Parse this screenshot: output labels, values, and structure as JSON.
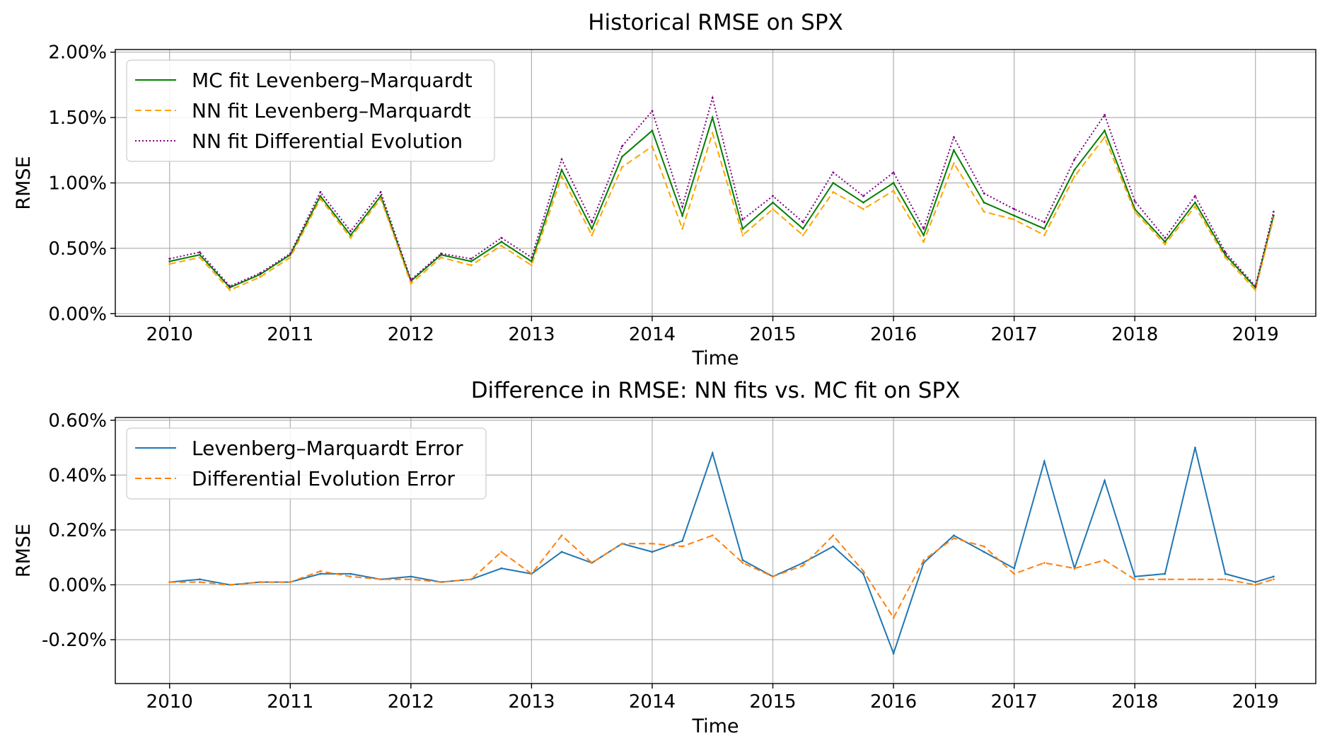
{
  "chart_data": [
    {
      "type": "line",
      "title": "Historical RMSE on SPX",
      "xlabel": "Time",
      "ylabel": "RMSE",
      "xlim": [
        2009.55,
        2019.5
      ],
      "ylim": [
        -0.0002,
        0.0202
      ],
      "x_ticks": [
        2010,
        2011,
        2012,
        2013,
        2014,
        2015,
        2016,
        2017,
        2018,
        2019
      ],
      "x_tick_labels": [
        "2010",
        "2011",
        "2012",
        "2013",
        "2014",
        "2015",
        "2016",
        "2017",
        "2018",
        "2019"
      ],
      "y_ticks": [
        0.0,
        0.005,
        0.01,
        0.015,
        0.02
      ],
      "y_tick_labels": [
        "0.00%",
        "0.50%",
        "1.00%",
        "1.50%",
        "2.00%"
      ],
      "grid": true,
      "legend_position": "top-left",
      "x": [
        2010.0,
        2010.25,
        2010.5,
        2010.75,
        2011.0,
        2011.25,
        2011.5,
        2011.75,
        2012.0,
        2012.25,
        2012.5,
        2012.75,
        2013.0,
        2013.25,
        2013.5,
        2013.75,
        2014.0,
        2014.25,
        2014.5,
        2014.75,
        2015.0,
        2015.25,
        2015.5,
        2015.75,
        2016.0,
        2016.25,
        2016.5,
        2016.75,
        2017.0,
        2017.25,
        2017.5,
        2017.75,
        2018.0,
        2018.25,
        2018.5,
        2018.75,
        2019.0,
        2019.15
      ],
      "series": [
        {
          "name": "MC fit Levenberg–Marquardt",
          "color": "#008000",
          "style": "solid",
          "values": [
            0.004,
            0.0045,
            0.002,
            0.003,
            0.0045,
            0.009,
            0.006,
            0.009,
            0.0025,
            0.0045,
            0.004,
            0.0055,
            0.004,
            0.011,
            0.0065,
            0.012,
            0.014,
            0.0075,
            0.015,
            0.0065,
            0.0085,
            0.0065,
            0.01,
            0.0085,
            0.01,
            0.006,
            0.0125,
            0.0085,
            0.0075,
            0.0065,
            0.011,
            0.014,
            0.008,
            0.0055,
            0.0085,
            0.0045,
            0.002,
            0.0075
          ]
        },
        {
          "name": "NN fit Levenberg–Marquardt",
          "color": "#FFA500",
          "style": "dashed",
          "values": [
            0.0038,
            0.0043,
            0.0018,
            0.0028,
            0.0043,
            0.0088,
            0.0058,
            0.0088,
            0.0023,
            0.0043,
            0.0037,
            0.0052,
            0.0037,
            0.0105,
            0.006,
            0.0112,
            0.0128,
            0.0065,
            0.0138,
            0.006,
            0.008,
            0.006,
            0.0093,
            0.008,
            0.0094,
            0.0055,
            0.0115,
            0.0078,
            0.0072,
            0.006,
            0.0105,
            0.0135,
            0.0078,
            0.0053,
            0.0082,
            0.0043,
            0.0018,
            0.0073
          ]
        },
        {
          "name": "NN fit Differential Evolution",
          "color": "#800080",
          "style": "dotted",
          "values": [
            0.0042,
            0.0047,
            0.0021,
            0.0031,
            0.0046,
            0.0093,
            0.0063,
            0.0093,
            0.0026,
            0.0046,
            0.0042,
            0.0058,
            0.0043,
            0.0118,
            0.007,
            0.0128,
            0.0155,
            0.0082,
            0.0165,
            0.0072,
            0.009,
            0.007,
            0.0108,
            0.009,
            0.0108,
            0.0065,
            0.0135,
            0.0092,
            0.008,
            0.007,
            0.0118,
            0.0152,
            0.0086,
            0.0058,
            0.009,
            0.0047,
            0.0021,
            0.0078
          ]
        }
      ]
    },
    {
      "type": "line",
      "title": "Difference in RMSE:  NN fits vs. MC fit on SPX",
      "xlabel": "Time",
      "ylabel": "RMSE",
      "xlim": [
        2009.55,
        2019.5
      ],
      "ylim": [
        -0.0036,
        0.0061
      ],
      "x_ticks": [
        2010,
        2011,
        2012,
        2013,
        2014,
        2015,
        2016,
        2017,
        2018,
        2019
      ],
      "x_tick_labels": [
        "2010",
        "2011",
        "2012",
        "2013",
        "2014",
        "2015",
        "2016",
        "2017",
        "2018",
        "2019"
      ],
      "y_ticks": [
        -0.002,
        0.0,
        0.002,
        0.004,
        0.006
      ],
      "y_tick_labels": [
        "-0.20%",
        "0.00%",
        "0.20%",
        "0.40%",
        "0.60%"
      ],
      "grid": true,
      "legend_position": "top-left",
      "x": [
        2010.0,
        2010.25,
        2010.5,
        2010.75,
        2011.0,
        2011.25,
        2011.5,
        2011.75,
        2012.0,
        2012.25,
        2012.5,
        2012.75,
        2013.0,
        2013.25,
        2013.5,
        2013.75,
        2014.0,
        2014.25,
        2014.5,
        2014.75,
        2015.0,
        2015.25,
        2015.5,
        2015.75,
        2016.0,
        2016.25,
        2016.5,
        2016.75,
        2017.0,
        2017.25,
        2017.5,
        2017.75,
        2018.0,
        2018.25,
        2018.5,
        2018.75,
        2019.0,
        2019.15
      ],
      "series": [
        {
          "name": "Levenberg–Marquardt Error",
          "color": "#1f77b4",
          "style": "solid",
          "values": [
            0.0001,
            0.0002,
            0.0,
            0.0001,
            0.0001,
            0.0004,
            0.0004,
            0.0002,
            0.0003,
            0.0001,
            0.0002,
            0.0006,
            0.0004,
            0.0012,
            0.0008,
            0.0015,
            0.0012,
            0.0016,
            0.0048,
            0.0009,
            0.0003,
            0.0008,
            0.0014,
            0.0004,
            -0.0025,
            0.0008,
            0.0018,
            0.0012,
            0.0006,
            0.0045,
            0.0006,
            0.0038,
            0.0003,
            0.0004,
            0.005,
            0.0004,
            0.0001,
            0.0003
          ]
        },
        {
          "name": "Differential Evolution Error",
          "color": "#ff7f0e",
          "style": "dashed",
          "values": [
            0.0001,
            0.0001,
            0.0,
            0.0001,
            0.0001,
            0.0005,
            0.0003,
            0.0002,
            0.0002,
            0.0001,
            0.0002,
            0.0012,
            0.0004,
            0.0018,
            0.0008,
            0.0015,
            0.0015,
            0.0014,
            0.0018,
            0.0008,
            0.0003,
            0.0007,
            0.0018,
            0.0005,
            -0.0012,
            0.0009,
            0.0017,
            0.0014,
            0.0004,
            0.0008,
            0.0006,
            0.0009,
            0.0002,
            0.0002,
            0.0002,
            0.0002,
            0.0,
            0.0002
          ]
        }
      ]
    }
  ]
}
